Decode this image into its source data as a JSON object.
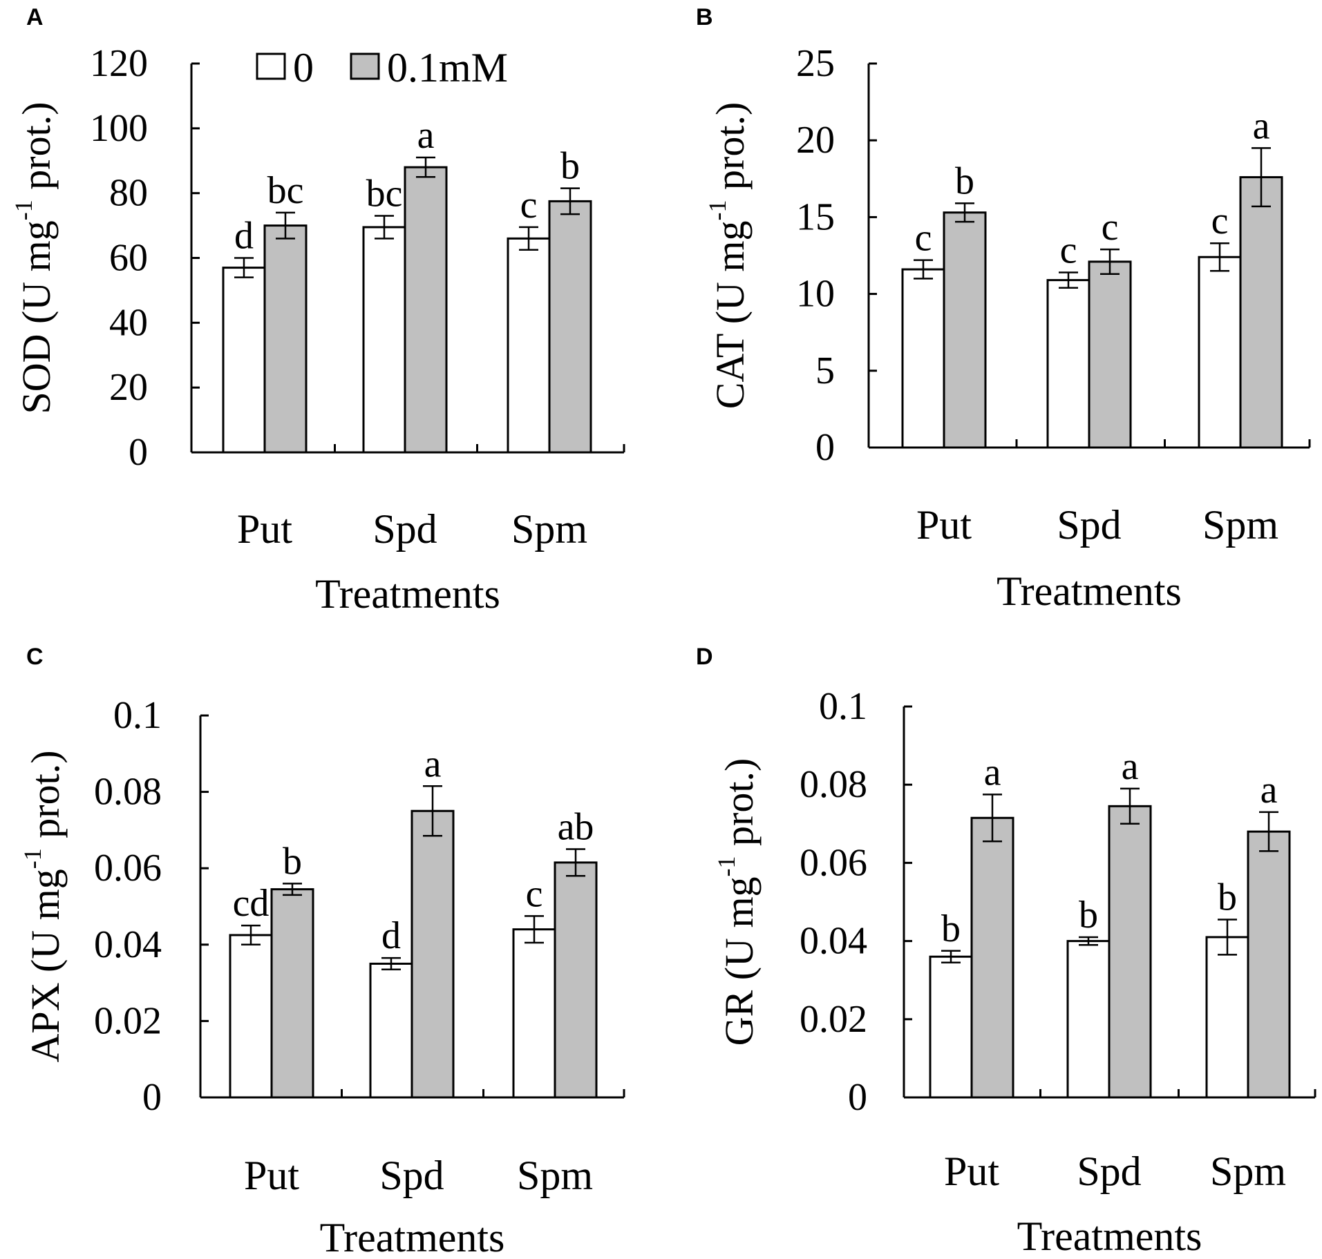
{
  "colors": {
    "control": "#ffffff",
    "treated": "#c0c0c0",
    "ink": "#000000"
  },
  "legend": {
    "items": [
      {
        "label": "0",
        "color": "#ffffff"
      },
      {
        "label": "0.1mM",
        "color": "#c0c0c0"
      }
    ]
  },
  "chart_data": [
    {
      "panel": "A",
      "type": "bar",
      "ylabel": {
        "main": "SOD (U mg",
        "sup": "-1",
        "tail": " prot.)"
      },
      "xlabel": "Treatments",
      "categories": [
        "Put",
        "Spd",
        "Spm"
      ],
      "ylim": [
        0,
        120
      ],
      "yticks": [
        0,
        20,
        40,
        60,
        80,
        100,
        120
      ],
      "tick_labels": [
        "0",
        "20",
        "40",
        "60",
        "80",
        "100",
        "120"
      ],
      "series": [
        {
          "name": "0",
          "values": [
            57,
            69.5,
            66
          ],
          "errors": [
            3,
            3.5,
            3.5
          ],
          "labels": [
            "d",
            "bc",
            "c"
          ]
        },
        {
          "name": "0.1mM",
          "values": [
            70,
            88,
            77.5
          ],
          "errors": [
            4,
            3,
            4
          ],
          "labels": [
            "bc",
            "a",
            "b"
          ]
        }
      ]
    },
    {
      "panel": "B",
      "type": "bar",
      "ylabel": {
        "main": "CAT (U mg",
        "sup": "-1",
        "tail": " prot.)"
      },
      "xlabel": "Treatments",
      "categories": [
        "Put",
        "Spd",
        "Spm"
      ],
      "ylim": [
        0,
        25
      ],
      "yticks": [
        0,
        5,
        10,
        15,
        20,
        25
      ],
      "tick_labels": [
        "0",
        "5",
        "10",
        "15",
        "20",
        "25"
      ],
      "series": [
        {
          "name": "0",
          "values": [
            11.6,
            10.9,
            12.4
          ],
          "errors": [
            0.6,
            0.5,
            0.9
          ],
          "labels": [
            "c",
            "c",
            "c"
          ]
        },
        {
          "name": "0.1mM",
          "values": [
            15.3,
            12.1,
            17.6
          ],
          "errors": [
            0.6,
            0.8,
            1.9
          ],
          "labels": [
            "b",
            "c",
            "a"
          ]
        }
      ]
    },
    {
      "panel": "C",
      "type": "bar",
      "ylabel": {
        "main": "APX (U mg",
        "sup": "-1",
        "tail": " prot.)"
      },
      "xlabel": "Treatments",
      "categories": [
        "Put",
        "Spd",
        "Spm"
      ],
      "ylim": [
        0,
        0.1
      ],
      "yticks": [
        0,
        0.02,
        0.04,
        0.06,
        0.08,
        0.1
      ],
      "tick_labels": [
        "0",
        "0.02",
        "0.04",
        "0.06",
        "0.08",
        "0.1"
      ],
      "series": [
        {
          "name": "0",
          "values": [
            0.0425,
            0.035,
            0.044
          ],
          "errors": [
            0.0025,
            0.0015,
            0.0035
          ],
          "labels": [
            "cd",
            "d",
            "c"
          ]
        },
        {
          "name": "0.1mM",
          "values": [
            0.0545,
            0.075,
            0.0615
          ],
          "errors": [
            0.0015,
            0.0065,
            0.0035
          ],
          "labels": [
            "b",
            "a",
            "ab"
          ]
        }
      ]
    },
    {
      "panel": "D",
      "type": "bar",
      "ylabel": {
        "main": "GR (U mg",
        "sup": "-1",
        "tail": " prot.)"
      },
      "xlabel": "Treatments",
      "categories": [
        "Put",
        "Spd",
        "Spm"
      ],
      "ylim": [
        0,
        0.1
      ],
      "yticks": [
        0,
        0.02,
        0.04,
        0.06,
        0.08,
        0.1
      ],
      "tick_labels": [
        "0",
        "0.02",
        "0.04",
        "0.06",
        "0.08",
        "0.1"
      ],
      "series": [
        {
          "name": "0",
          "values": [
            0.036,
            0.04,
            0.041
          ],
          "errors": [
            0.0015,
            0.001,
            0.0045
          ],
          "labels": [
            "b",
            "b",
            "b"
          ]
        },
        {
          "name": "0.1mM",
          "values": [
            0.0715,
            0.0745,
            0.068
          ],
          "errors": [
            0.006,
            0.0045,
            0.005
          ],
          "labels": [
            "a",
            "a",
            "a"
          ]
        }
      ]
    }
  ]
}
